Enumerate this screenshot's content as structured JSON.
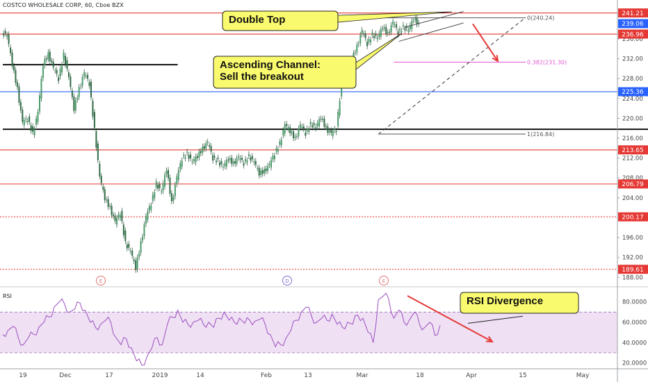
{
  "header": {
    "title": "COSTCO WHOLESALE CORP, 60, Cboe BZX"
  },
  "rsi_panel": {
    "title": "RSI"
  },
  "colors": {
    "up": "#26a69a",
    "down": "#ef5350",
    "candle_body": "#4a9a6a",
    "level_red": "#e53935",
    "level_blue": "#2962ff",
    "fib": "#e056d3",
    "rsi_line": "#9c4fbf",
    "rsi_band": "#e9d5f0",
    "callout": "#fafa6e"
  },
  "chart_data": [
    {
      "type": "candlestick",
      "title": "COSTCO WHOLESALE CORP, 60, Cboe BZX",
      "ylim": [
        186.5,
        242.7
      ],
      "yticks": [
        "188.00",
        "192.00",
        "196.00",
        "200.00",
        "204.00",
        "208.00",
        "212.00",
        "216.00",
        "220.00",
        "224.00",
        "228.00",
        "232.00",
        "236.00"
      ],
      "price_labels": [
        {
          "text": "241.21",
          "value": 241.21,
          "color": "#e53935"
        },
        {
          "text": "239.06",
          "value": 239.06,
          "color": "#2962ff"
        },
        {
          "text": "236.96",
          "value": 236.96,
          "color": "#e53935"
        },
        {
          "text": "225.36",
          "value": 225.36,
          "color": "#2962ff"
        },
        {
          "text": "213.65",
          "value": 213.65,
          "color": "#e53935"
        },
        {
          "text": "206.79",
          "value": 206.79,
          "color": "#e53935"
        },
        {
          "text": "200.17",
          "value": 200.17,
          "color": "#e53935"
        },
        {
          "text": "189.61",
          "value": 189.61,
          "color": "#e53935"
        }
      ],
      "xticks": [
        "19",
        "Dec",
        "17",
        "2019",
        "14",
        "Feb",
        "13",
        "Mar",
        "18",
        "Apr",
        "15",
        "May"
      ],
      "price_path": [
        [
          0,
          237.5
        ],
        [
          3,
          236.5
        ],
        [
          5,
          231
        ],
        [
          8,
          226
        ],
        [
          10,
          219
        ],
        [
          11,
          220
        ],
        [
          13,
          217
        ],
        [
          15,
          221
        ],
        [
          16,
          231
        ],
        [
          17,
          233
        ],
        [
          18,
          230
        ],
        [
          19,
          228
        ],
        [
          20,
          233
        ],
        [
          21,
          228
        ],
        [
          22,
          222
        ],
        [
          23,
          226
        ],
        [
          24,
          229
        ],
        [
          25,
          227
        ],
        [
          26,
          217.8
        ],
        [
          27,
          208
        ],
        [
          28,
          204
        ],
        [
          29,
          202
        ],
        [
          30,
          199
        ],
        [
          31,
          201
        ],
        [
          32,
          195
        ],
        [
          33,
          193
        ],
        [
          34,
          190
        ],
        [
          35,
          195
        ],
        [
          36,
          200
        ],
        [
          37,
          203
        ],
        [
          38,
          207
        ],
        [
          39,
          205
        ],
        [
          40,
          210
        ],
        [
          41,
          203
        ],
        [
          42,
          208
        ],
        [
          43,
          212
        ],
        [
          44,
          213
        ],
        [
          45,
          211
        ],
        [
          46,
          212.5
        ],
        [
          47,
          214
        ],
        [
          48,
          215
        ],
        [
          49,
          212
        ],
        [
          50,
          211.5
        ],
        [
          51,
          210
        ],
        [
          52,
          212
        ],
        [
          53,
          211
        ],
        [
          54,
          212
        ],
        [
          55,
          211
        ],
        [
          56,
          212.5
        ],
        [
          57,
          211
        ],
        [
          58,
          209
        ],
        [
          59,
          209.5
        ],
        [
          60,
          210.5
        ],
        [
          61,
          213
        ],
        [
          62,
          215
        ],
        [
          63,
          218.5
        ],
        [
          64,
          217.5
        ],
        [
          65,
          216
        ],
        [
          66,
          218.5
        ],
        [
          67,
          217
        ],
        [
          68,
          219
        ],
        [
          69,
          218
        ],
        [
          70,
          220.3
        ],
        [
          71,
          218
        ],
        [
          72,
          216.8
        ],
        [
          73,
          218
        ],
        [
          74,
          227
        ],
        [
          75,
          229
        ],
        [
          76,
          232
        ],
        [
          77,
          234.5
        ],
        [
          78,
          237.5
        ],
        [
          79,
          235
        ],
        [
          80,
          237
        ],
        [
          81,
          236
        ],
        [
          82,
          238.5
        ],
        [
          83,
          237
        ],
        [
          84,
          239.2
        ],
        [
          85,
          237.3
        ],
        [
          86,
          238.5
        ],
        [
          87,
          237.5
        ],
        [
          88,
          240.2
        ],
        [
          89,
          239
        ]
      ],
      "levels": [
        {
          "value": 241.21,
          "color": "#e53935",
          "style": "solid"
        },
        {
          "value": 236.96,
          "color": "#e53935",
          "style": "solid"
        },
        {
          "value": 225.36,
          "color": "#2962ff",
          "style": "solid"
        },
        {
          "value": 213.65,
          "color": "#e53935",
          "style": "solid"
        },
        {
          "value": 206.79,
          "color": "#e53935",
          "style": "solid"
        },
        {
          "value": 200.17,
          "color": "#e53935",
          "style": "dotted"
        },
        {
          "value": 189.61,
          "color": "#e53935",
          "style": "dotted"
        }
      ],
      "support_lines": [
        {
          "value": 230.8,
          "from": 0,
          "to": 34
        },
        {
          "value": 217.8,
          "from": 0,
          "to": 137
        }
      ],
      "fib_levels": [
        {
          "label": "0(240.24)",
          "value": 240.24
        },
        {
          "label": "0.382(231.30)",
          "value": 231.3
        },
        {
          "label": "1(216.84)",
          "value": 216.84
        }
      ],
      "annotations": [
        "Double Top",
        "Ascending Channel:\nSell the breakout"
      ],
      "event_markers": [
        "E",
        "D",
        "E"
      ]
    },
    {
      "type": "line",
      "title": "RSI",
      "ylim": [
        15,
        90
      ],
      "yticks": [
        "20.0000",
        "40.0000",
        "60.0000",
        "80.0000"
      ],
      "bands": [
        30,
        70
      ],
      "values": [
        48,
        52,
        56,
        45,
        38,
        45,
        48,
        55,
        60,
        65,
        75,
        80,
        78,
        70,
        73,
        79,
        72,
        60,
        55,
        58,
        62,
        60,
        45,
        38,
        44,
        35,
        22,
        18,
        26,
        35,
        45,
        38,
        58,
        65,
        72,
        60,
        58,
        60,
        62,
        58,
        60,
        55,
        64,
        70,
        62,
        60,
        64,
        59,
        62,
        61,
        63,
        58,
        48,
        36,
        38,
        44,
        52,
        62,
        70,
        75,
        66,
        60,
        64,
        62,
        68,
        58,
        55,
        60,
        58,
        67,
        64,
        50,
        40,
        82,
        86,
        83,
        64,
        72,
        60,
        62,
        70,
        58,
        55,
        60,
        47,
        57
      ],
      "annotation": "RSI Divergence"
    }
  ]
}
